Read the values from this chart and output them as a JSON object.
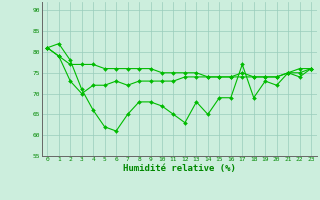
{
  "line1": [
    81,
    82,
    78,
    71,
    66,
    62,
    61,
    65,
    68,
    68,
    67,
    65,
    63,
    68,
    65,
    69,
    69,
    77,
    69,
    73,
    72,
    75,
    74,
    76
  ],
  "line2": [
    81,
    79,
    77,
    77,
    77,
    76,
    76,
    76,
    76,
    76,
    75,
    75,
    75,
    75,
    74,
    74,
    74,
    75,
    74,
    74,
    74,
    75,
    76,
    76
  ],
  "line3": [
    81,
    79,
    73,
    70,
    72,
    72,
    73,
    72,
    73,
    73,
    73,
    73,
    74,
    74,
    74,
    74,
    74,
    74,
    74,
    74,
    74,
    75,
    75,
    76
  ],
  "line_color": "#00bb00",
  "bg_color": "#cceedd",
  "grid_color": "#99ccbb",
  "xlabel": "Humidité relative (%)",
  "xlabel_color": "#008800",
  "tick_color": "#008800",
  "ylim": [
    55,
    92
  ],
  "yticks": [
    55,
    60,
    65,
    70,
    75,
    80,
    85,
    90
  ],
  "xlim": [
    -0.5,
    23.5
  ],
  "xticks": [
    0,
    1,
    2,
    3,
    4,
    5,
    6,
    7,
    8,
    9,
    10,
    11,
    12,
    13,
    14,
    15,
    16,
    17,
    18,
    19,
    20,
    21,
    22,
    23
  ]
}
